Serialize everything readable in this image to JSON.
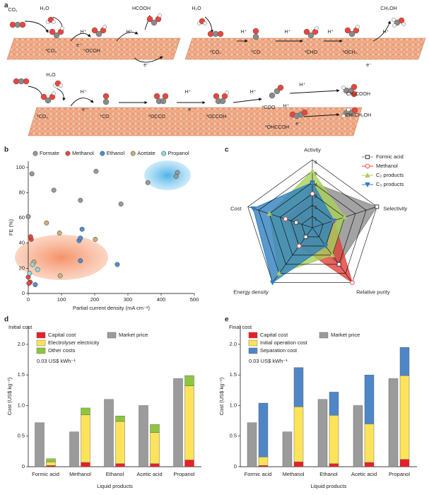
{
  "diagram": {
    "panel_label": "a",
    "labels": [
      "CO₂",
      "H₂O",
      "HCOOH",
      "H⁺",
      "*CO₂",
      "e⁻",
      "*OCOH",
      "H⁺",
      "e⁻",
      "H₂O",
      "CH₃OH",
      "H⁺",
      "*CO₂",
      "*CO",
      "H⁺",
      "*CHO",
      "H⁺",
      "*OCH₃",
      "H⁺",
      "e⁻",
      "H₂O",
      "H⁺",
      "*CO₂",
      "e⁻",
      "*CO",
      "*OCCO",
      "H⁺",
      "e⁻",
      "*OCCOH",
      "H⁺",
      "*COO",
      "H⁺",
      "CH₃COOH",
      "H⁺",
      "*OHCCOH",
      "e⁻",
      "CH₃CH₂OH"
    ]
  },
  "chart_data": [
    {
      "type": "scatter",
      "panel_label": "b",
      "xlabel": "Partial current density (mA cm⁻²)",
      "ylabel": "FE (%)",
      "xlim": [
        0,
        500
      ],
      "xticks": [
        0,
        100,
        200,
        300,
        400,
        500
      ],
      "ylim": [
        0,
        105
      ],
      "yticks": [
        0,
        20,
        40,
        60,
        80,
        100
      ],
      "series": [
        {
          "name": "Formate",
          "color": "#9a9a9a",
          "x": [
            11,
            77,
            204,
            157,
            279,
            0,
            360,
            449,
            445
          ],
          "values": [
            95,
            82,
            97,
            74,
            71,
            61,
            88,
            96,
            93
          ]
        },
        {
          "name": "Methanol",
          "color": "#e8473c",
          "x": [
            9,
            7,
            0,
            6,
            2
          ],
          "values": [
            43,
            45,
            13,
            9,
            8
          ]
        },
        {
          "name": "Ethanol",
          "color": "#4f8fd0",
          "x": [
            153,
            157,
            162,
            157,
            268,
            21
          ],
          "values": [
            42,
            44,
            51,
            26,
            23,
            7
          ]
        },
        {
          "name": "Acetate",
          "color": "#c9b07a",
          "x": [
            55,
            94,
            202,
            96,
            17
          ],
          "values": [
            56,
            48,
            43,
            14,
            25
          ]
        },
        {
          "name": "Propanol",
          "color": "#8fd9dc",
          "x": [
            4,
            13,
            28
          ],
          "values": [
            16,
            23,
            19
          ]
        }
      ]
    },
    {
      "type": "radar",
      "panel_label": "c",
      "axes": [
        "Activity",
        "Selectivity",
        "Relative purity",
        "Energy density",
        "Cost"
      ],
      "rlim": [
        0,
        6
      ],
      "rticks": [
        1,
        2,
        3,
        4,
        5,
        6
      ],
      "series": [
        {
          "name": "Formic acid",
          "color": "#8c8c8c",
          "values": [
            4,
            6,
            4,
            1,
            1.5
          ]
        },
        {
          "name": "Methanol",
          "color": "#e0403a",
          "values": [
            3,
            2,
            6,
            2,
            2.5
          ]
        },
        {
          "name": "C₂ products",
          "color": "#a8cf5a",
          "values": [
            5,
            3,
            3,
            5,
            4
          ]
        },
        {
          "name": "C₃ products",
          "color": "#2f7fbf",
          "values": [
            4,
            2,
            2,
            6,
            5.5
          ]
        }
      ]
    },
    {
      "type": "stacked_bar",
      "panel_label": "d",
      "subtitle": "Initial cost",
      "annotation": "0.03 US$ kWh⁻¹",
      "xlabel": "Liquid products",
      "ylabel": "Cost (US$ kg⁻¹)",
      "categories": [
        "Formic acid",
        "Methanol",
        "Ethanol",
        "Acetic acid",
        "Propanol"
      ],
      "ylim": [
        0,
        2.3
      ],
      "yticks": [
        0,
        0.5,
        {
          "value": 1,
          "label": "1.0"
        },
        1.5,
        {
          "value": 2,
          "label": "2.0"
        }
      ],
      "market_price": {
        "name": "Market price",
        "color": "#9b9b9b",
        "values": [
          0.72,
          0.57,
          1.1,
          1.0,
          1.44
        ]
      },
      "series": [
        {
          "name": "Capital cost",
          "color": "#e8202a",
          "values": [
            0.02,
            0.07,
            0.05,
            0.05,
            0.11
          ]
        },
        {
          "name": "Electrolyser electricity",
          "color": "#fde35a",
          "values": [
            0.06,
            0.78,
            0.69,
            0.51,
            1.21
          ]
        },
        {
          "name": "Other costs",
          "color": "#8dc63f",
          "values": [
            0.05,
            0.11,
            0.09,
            0.13,
            0.17
          ]
        }
      ]
    },
    {
      "type": "stacked_bar",
      "panel_label": "e",
      "subtitle": "Final cost",
      "annotation": "0.03 US$ kWh⁻¹",
      "xlabel": "Liquid products",
      "ylabel": "Cost (US$ kg⁻¹)",
      "categories": [
        "Formic acid",
        "Methanol",
        "Ethanol",
        "Acetic acid",
        "Propanol"
      ],
      "ylim": [
        0,
        2.3
      ],
      "yticks": [
        0,
        0.5,
        {
          "value": 1,
          "label": "1.0"
        },
        1.5,
        {
          "value": 2,
          "label": "2.0"
        }
      ],
      "market_price": {
        "name": "Market price",
        "color": "#9b9b9b",
        "values": [
          0.72,
          0.57,
          1.1,
          1.0,
          1.44
        ]
      },
      "series": [
        {
          "name": "Capital cost",
          "color": "#e8202a",
          "values": [
            0.02,
            0.08,
            0.05,
            0.07,
            0.12
          ]
        },
        {
          "name": "Initial operation cost",
          "color": "#fde35a",
          "values": [
            0.14,
            0.9,
            0.79,
            0.63,
            1.37
          ]
        },
        {
          "name": "Separation cost",
          "color": "#4f86c6",
          "values": [
            0.88,
            0.64,
            0.38,
            0.8,
            0.46
          ]
        }
      ]
    }
  ]
}
